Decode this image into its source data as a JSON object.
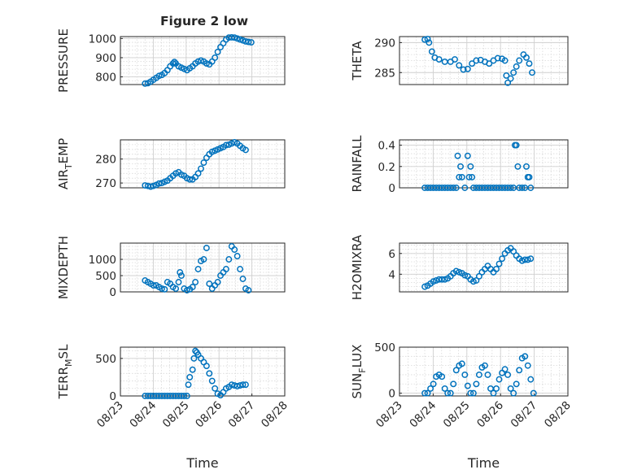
{
  "figure_title": "Figure 2 low",
  "marker_color": "#0072BD",
  "chart_data": [
    {
      "type": "scatter",
      "ylabel": "PRESSURE",
      "xlabel": "",
      "xlim": [
        0,
        5
      ],
      "ylim": [
        760,
        1010
      ],
      "yticks": [
        800,
        900,
        1000
      ],
      "ytick_labels": [
        "800",
        "900",
        "1000"
      ],
      "grid": true,
      "points": [
        [
          0.0,
          765
        ],
        [
          0.1,
          767
        ],
        [
          0.2,
          775
        ],
        [
          0.3,
          785
        ],
        [
          0.4,
          795
        ],
        [
          0.5,
          805
        ],
        [
          0.6,
          810
        ],
        [
          0.7,
          820
        ],
        [
          0.8,
          835
        ],
        [
          0.9,
          855
        ],
        [
          1.0,
          870
        ],
        [
          1.05,
          878
        ],
        [
          1.1,
          870
        ],
        [
          1.2,
          855
        ],
        [
          1.3,
          848
        ],
        [
          1.4,
          842
        ],
        [
          1.5,
          835
        ],
        [
          1.6,
          845
        ],
        [
          1.7,
          855
        ],
        [
          1.8,
          870
        ],
        [
          1.9,
          880
        ],
        [
          2.0,
          885
        ],
        [
          2.1,
          880
        ],
        [
          2.2,
          870
        ],
        [
          2.3,
          865
        ],
        [
          2.4,
          880
        ],
        [
          2.5,
          900
        ],
        [
          2.6,
          930
        ],
        [
          2.7,
          955
        ],
        [
          2.8,
          975
        ],
        [
          2.9,
          995
        ],
        [
          3.0,
          1005
        ],
        [
          3.1,
          1006
        ],
        [
          3.2,
          1005
        ],
        [
          3.3,
          1000
        ],
        [
          3.4,
          995
        ],
        [
          3.5,
          990
        ],
        [
          3.6,
          985
        ],
        [
          3.7,
          982
        ],
        [
          3.8,
          980
        ]
      ]
    },
    {
      "type": "scatter",
      "ylabel": "THETA",
      "xlabel": "",
      "xlim": [
        0,
        5
      ],
      "ylim": [
        283,
        291
      ],
      "yticks": [
        285,
        290
      ],
      "ytick_labels": [
        "285",
        "290"
      ],
      "grid": true,
      "points": [
        [
          0.0,
          290.5
        ],
        [
          0.1,
          290.6
        ],
        [
          0.15,
          290.0
        ],
        [
          0.25,
          288.5
        ],
        [
          0.35,
          287.5
        ],
        [
          0.5,
          287.2
        ],
        [
          0.7,
          286.8
        ],
        [
          0.9,
          286.8
        ],
        [
          1.05,
          287.2
        ],
        [
          1.2,
          286.2
        ],
        [
          1.35,
          285.5
        ],
        [
          1.5,
          285.6
        ],
        [
          1.65,
          286.5
        ],
        [
          1.8,
          287.0
        ],
        [
          1.95,
          287.1
        ],
        [
          2.1,
          286.8
        ],
        [
          2.25,
          286.5
        ],
        [
          2.4,
          287.0
        ],
        [
          2.55,
          287.4
        ],
        [
          2.7,
          287.3
        ],
        [
          2.8,
          287.0
        ],
        [
          2.85,
          284.5
        ],
        [
          2.9,
          283.3
        ],
        [
          3.0,
          284.0
        ],
        [
          3.1,
          285.0
        ],
        [
          3.2,
          286.0
        ],
        [
          3.3,
          287.0
        ],
        [
          3.45,
          288.0
        ],
        [
          3.55,
          287.5
        ],
        [
          3.65,
          286.5
        ],
        [
          3.75,
          285.0
        ]
      ]
    },
    {
      "type": "scatter",
      "ylabel": "AIR_TEMP",
      "xlabel": "",
      "xlim": [
        0,
        5
      ],
      "ylim": [
        268,
        288
      ],
      "yticks": [
        270,
        280
      ],
      "ytick_labels": [
        "270",
        "280"
      ],
      "grid": true,
      "points": [
        [
          0.0,
          269
        ],
        [
          0.1,
          268.8
        ],
        [
          0.2,
          268.5
        ],
        [
          0.3,
          268.8
        ],
        [
          0.4,
          269.2
        ],
        [
          0.5,
          269.8
        ],
        [
          0.6,
          270.0
        ],
        [
          0.7,
          270.5
        ],
        [
          0.8,
          271.0
        ],
        [
          0.9,
          272.0
        ],
        [
          1.0,
          273.0
        ],
        [
          1.1,
          274.0
        ],
        [
          1.2,
          274.5
        ],
        [
          1.3,
          273.5
        ],
        [
          1.4,
          273.0
        ],
        [
          1.5,
          272.0
        ],
        [
          1.6,
          271.5
        ],
        [
          1.7,
          271.5
        ],
        [
          1.8,
          272.5
        ],
        [
          1.9,
          274.0
        ],
        [
          2.0,
          276.0
        ],
        [
          2.1,
          278.5
        ],
        [
          2.2,
          280.5
        ],
        [
          2.3,
          282.0
        ],
        [
          2.4,
          283.0
        ],
        [
          2.5,
          283.5
        ],
        [
          2.6,
          284.0
        ],
        [
          2.7,
          284.5
        ],
        [
          2.8,
          285.0
        ],
        [
          2.9,
          285.8
        ],
        [
          3.0,
          286.0
        ],
        [
          3.1,
          286.5
        ],
        [
          3.2,
          287.0
        ],
        [
          3.3,
          286.5
        ],
        [
          3.4,
          285.5
        ],
        [
          3.5,
          284.5
        ],
        [
          3.6,
          283.8
        ]
      ]
    },
    {
      "type": "scatter",
      "ylabel": "RAINFALL",
      "xlabel": "",
      "xlim": [
        0,
        5
      ],
      "ylim": [
        0,
        0.45
      ],
      "yticks": [
        0,
        0.2,
        0.4
      ],
      "ytick_labels": [
        "0",
        "0.2",
        "0.4"
      ],
      "grid": true,
      "points": [
        [
          0.0,
          0
        ],
        [
          0.1,
          0
        ],
        [
          0.2,
          0
        ],
        [
          0.3,
          0
        ],
        [
          0.4,
          0
        ],
        [
          0.5,
          0
        ],
        [
          0.6,
          0
        ],
        [
          0.7,
          0
        ],
        [
          0.8,
          0
        ],
        [
          0.9,
          0
        ],
        [
          1.0,
          0
        ],
        [
          1.1,
          0
        ],
        [
          1.15,
          0.3
        ],
        [
          1.2,
          0.1
        ],
        [
          1.25,
          0.2
        ],
        [
          1.3,
          0.1
        ],
        [
          1.4,
          0
        ],
        [
          1.5,
          0.3
        ],
        [
          1.55,
          0.1
        ],
        [
          1.6,
          0.2
        ],
        [
          1.65,
          0.1
        ],
        [
          1.7,
          0
        ],
        [
          1.8,
          0
        ],
        [
          1.9,
          0
        ],
        [
          2.0,
          0
        ],
        [
          2.1,
          0
        ],
        [
          2.2,
          0
        ],
        [
          2.3,
          0
        ],
        [
          2.4,
          0
        ],
        [
          2.5,
          0
        ],
        [
          2.6,
          0
        ],
        [
          2.7,
          0
        ],
        [
          2.8,
          0
        ],
        [
          2.9,
          0
        ],
        [
          3.0,
          0
        ],
        [
          3.1,
          0
        ],
        [
          3.15,
          0.4
        ],
        [
          3.2,
          0.4
        ],
        [
          3.25,
          0.2
        ],
        [
          3.3,
          0
        ],
        [
          3.4,
          0
        ],
        [
          3.5,
          0
        ],
        [
          3.55,
          0.2
        ],
        [
          3.6,
          0.1
        ],
        [
          3.65,
          0.1
        ],
        [
          3.7,
          0
        ]
      ]
    },
    {
      "type": "scatter",
      "ylabel": "MIXDEPTH",
      "xlabel": "",
      "xlim": [
        0,
        5
      ],
      "ylim": [
        0,
        1500
      ],
      "yticks": [
        0,
        500,
        1000
      ],
      "ytick_labels": [
        "0",
        "500",
        "1000"
      ],
      "grid": true,
      "points": [
        [
          0.0,
          350
        ],
        [
          0.1,
          300
        ],
        [
          0.2,
          250
        ],
        [
          0.3,
          200
        ],
        [
          0.4,
          200
        ],
        [
          0.5,
          150
        ],
        [
          0.6,
          100
        ],
        [
          0.7,
          80
        ],
        [
          0.8,
          300
        ],
        [
          0.9,
          250
        ],
        [
          1.0,
          150
        ],
        [
          1.1,
          100
        ],
        [
          1.2,
          300
        ],
        [
          1.25,
          600
        ],
        [
          1.3,
          500
        ],
        [
          1.4,
          100
        ],
        [
          1.5,
          50
        ],
        [
          1.6,
          80
        ],
        [
          1.7,
          150
        ],
        [
          1.8,
          300
        ],
        [
          1.9,
          700
        ],
        [
          2.0,
          950
        ],
        [
          2.1,
          1000
        ],
        [
          2.2,
          1350
        ],
        [
          2.3,
          250
        ],
        [
          2.4,
          100
        ],
        [
          2.5,
          200
        ],
        [
          2.6,
          300
        ],
        [
          2.7,
          500
        ],
        [
          2.8,
          600
        ],
        [
          2.9,
          700
        ],
        [
          3.0,
          1000
        ],
        [
          3.1,
          1400
        ],
        [
          3.2,
          1300
        ],
        [
          3.3,
          1100
        ],
        [
          3.4,
          700
        ],
        [
          3.5,
          400
        ],
        [
          3.6,
          100
        ],
        [
          3.7,
          50
        ]
      ]
    },
    {
      "type": "scatter",
      "ylabel": "H2OMIXRA",
      "xlabel": "",
      "xlim": [
        0,
        5
      ],
      "ylim": [
        2.3,
        7
      ],
      "yticks": [
        4,
        6
      ],
      "ytick_labels": [
        "4",
        "6"
      ],
      "grid": true,
      "points": [
        [
          0.0,
          2.8
        ],
        [
          0.1,
          2.9
        ],
        [
          0.2,
          3.1
        ],
        [
          0.3,
          3.3
        ],
        [
          0.4,
          3.4
        ],
        [
          0.5,
          3.5
        ],
        [
          0.6,
          3.5
        ],
        [
          0.7,
          3.5
        ],
        [
          0.8,
          3.6
        ],
        [
          0.9,
          3.8
        ],
        [
          1.0,
          4.1
        ],
        [
          1.1,
          4.3
        ],
        [
          1.2,
          4.2
        ],
        [
          1.3,
          4.1
        ],
        [
          1.4,
          3.9
        ],
        [
          1.5,
          3.8
        ],
        [
          1.6,
          3.5
        ],
        [
          1.7,
          3.3
        ],
        [
          1.8,
          3.4
        ],
        [
          1.9,
          3.8
        ],
        [
          2.0,
          4.2
        ],
        [
          2.1,
          4.5
        ],
        [
          2.2,
          4.8
        ],
        [
          2.3,
          4.5
        ],
        [
          2.4,
          4.2
        ],
        [
          2.5,
          4.5
        ],
        [
          2.6,
          5.0
        ],
        [
          2.7,
          5.5
        ],
        [
          2.8,
          6.0
        ],
        [
          2.9,
          6.3
        ],
        [
          3.0,
          6.5
        ],
        [
          3.1,
          6.2
        ],
        [
          3.2,
          5.8
        ],
        [
          3.3,
          5.5
        ],
        [
          3.4,
          5.3
        ],
        [
          3.5,
          5.4
        ],
        [
          3.6,
          5.4
        ],
        [
          3.7,
          5.5
        ]
      ]
    },
    {
      "type": "scatter",
      "ylabel": "TERR_MSL",
      "xlabel": "Time",
      "xlim": [
        0,
        5
      ],
      "ylim": [
        0,
        650
      ],
      "yticks": [
        0,
        500
      ],
      "ytick_labels": [
        "0",
        "500"
      ],
      "grid": true,
      "xtick_labels": [
        "08/23",
        "08/24",
        "08/25",
        "08/26",
        "08/27",
        "08/28"
      ],
      "points": [
        [
          0.0,
          0
        ],
        [
          0.1,
          0
        ],
        [
          0.2,
          0
        ],
        [
          0.3,
          0
        ],
        [
          0.4,
          0
        ],
        [
          0.5,
          0
        ],
        [
          0.6,
          0
        ],
        [
          0.7,
          0
        ],
        [
          0.8,
          0
        ],
        [
          0.9,
          0
        ],
        [
          1.0,
          0
        ],
        [
          1.1,
          0
        ],
        [
          1.2,
          0
        ],
        [
          1.3,
          0
        ],
        [
          1.4,
          0
        ],
        [
          1.5,
          0
        ],
        [
          1.55,
          150
        ],
        [
          1.6,
          250
        ],
        [
          1.7,
          350
        ],
        [
          1.75,
          500
        ],
        [
          1.8,
          600
        ],
        [
          1.85,
          580
        ],
        [
          1.9,
          550
        ],
        [
          2.0,
          500
        ],
        [
          2.1,
          450
        ],
        [
          2.2,
          400
        ],
        [
          2.3,
          300
        ],
        [
          2.4,
          200
        ],
        [
          2.5,
          100
        ],
        [
          2.6,
          30
        ],
        [
          2.7,
          10
        ],
        [
          2.8,
          50
        ],
        [
          2.9,
          100
        ],
        [
          3.0,
          120
        ],
        [
          3.1,
          150
        ],
        [
          3.2,
          140
        ],
        [
          3.3,
          130
        ],
        [
          3.4,
          140
        ],
        [
          3.5,
          150
        ],
        [
          3.6,
          150
        ]
      ]
    },
    {
      "type": "scatter",
      "ylabel": "SUN_FLUX",
      "xlabel": "Time",
      "xlim": [
        0,
        5
      ],
      "ylim": [
        -30,
        500
      ],
      "yticks": [
        0,
        500
      ],
      "ytick_labels": [
        "0",
        "500"
      ],
      "grid": true,
      "xtick_labels": [
        "08/23",
        "08/24",
        "08/25",
        "08/26",
        "08/27",
        "08/28"
      ],
      "points": [
        [
          0.0,
          0
        ],
        [
          0.1,
          0
        ],
        [
          0.2,
          50
        ],
        [
          0.3,
          100
        ],
        [
          0.4,
          180
        ],
        [
          0.5,
          200
        ],
        [
          0.6,
          180
        ],
        [
          0.7,
          50
        ],
        [
          0.8,
          0
        ],
        [
          0.9,
          0
        ],
        [
          1.0,
          100
        ],
        [
          1.1,
          250
        ],
        [
          1.2,
          300
        ],
        [
          1.3,
          320
        ],
        [
          1.4,
          200
        ],
        [
          1.5,
          80
        ],
        [
          1.6,
          0
        ],
        [
          1.7,
          0
        ],
        [
          1.8,
          100
        ],
        [
          1.9,
          200
        ],
        [
          2.0,
          280
        ],
        [
          2.1,
          300
        ],
        [
          2.2,
          200
        ],
        [
          2.3,
          50
        ],
        [
          2.4,
          0
        ],
        [
          2.5,
          50
        ],
        [
          2.6,
          150
        ],
        [
          2.7,
          220
        ],
        [
          2.8,
          260
        ],
        [
          2.9,
          200
        ],
        [
          3.0,
          50
        ],
        [
          3.1,
          0
        ],
        [
          3.2,
          100
        ],
        [
          3.3,
          250
        ],
        [
          3.4,
          380
        ],
        [
          3.5,
          400
        ],
        [
          3.6,
          300
        ],
        [
          3.7,
          150
        ],
        [
          3.8,
          0
        ]
      ]
    }
  ]
}
